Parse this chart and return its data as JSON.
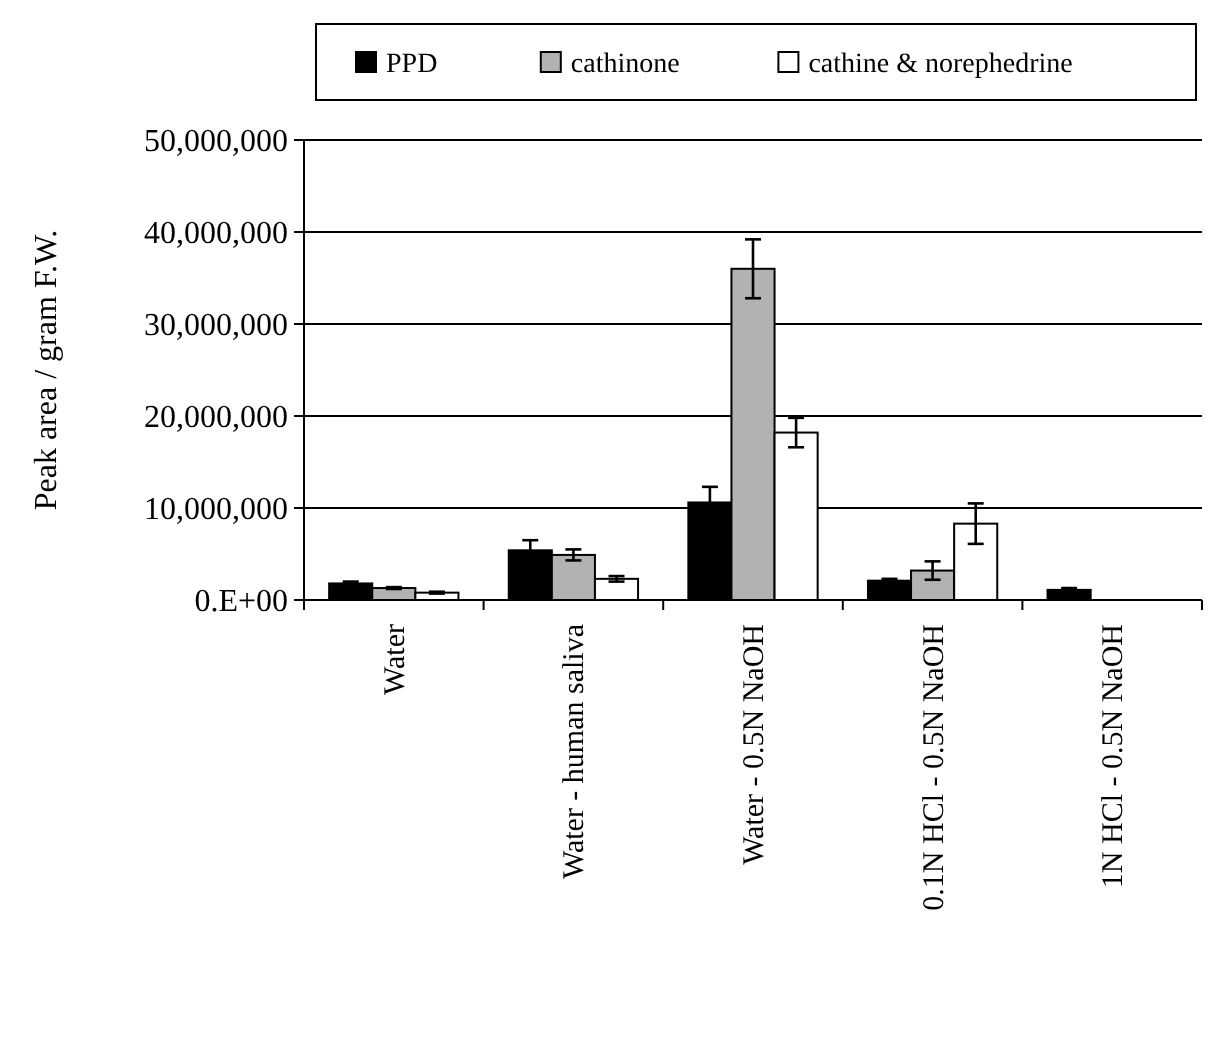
{
  "chart_data": {
    "type": "bar",
    "ylabel": "Peak area / gram F.W.",
    "categories": [
      "Water",
      "Water - human saliva",
      "Water - 0.5N NaOH",
      "0.1N HCl - 0.5N NaOH",
      "1N HCl - 0.5N NaOH"
    ],
    "series": [
      {
        "name": "PPD",
        "color": "#000000",
        "values": [
          1800000,
          5400000,
          10600000,
          2100000,
          1100000
        ],
        "errors": [
          200000,
          1100000,
          1700000,
          200000,
          200000
        ]
      },
      {
        "name": "cathinone",
        "color": "#b2b2b2",
        "values": [
          1300000,
          4900000,
          36000000,
          3200000,
          null
        ],
        "errors": [
          100000,
          600000,
          3200000,
          1000000,
          null
        ]
      },
      {
        "name": "cathine & norephedrine",
        "color": "#ffffff",
        "values": [
          800000,
          2300000,
          18200000,
          8300000,
          null
        ],
        "errors": [
          100000,
          300000,
          1600000,
          2200000,
          null
        ]
      }
    ],
    "ylim": [
      0,
      50000000
    ],
    "yticks": [
      {
        "value": 0,
        "label": "0.E+00"
      },
      {
        "value": 10000000,
        "label": "10,000,000"
      },
      {
        "value": 20000000,
        "label": "20,000,000"
      },
      {
        "value": 30000000,
        "label": "30,000,000"
      },
      {
        "value": 40000000,
        "label": "40,000,000"
      },
      {
        "value": 50000000,
        "label": "50,000,000"
      }
    ],
    "grid": "y",
    "legend": "top"
  }
}
